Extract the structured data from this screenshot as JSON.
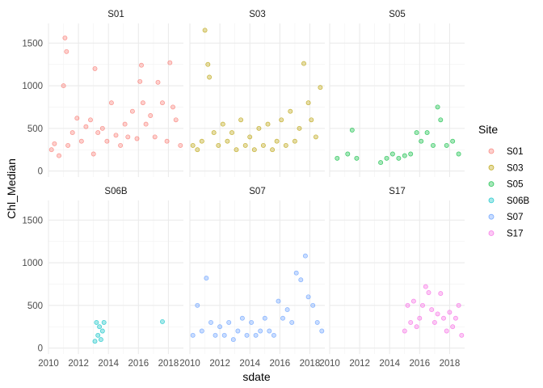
{
  "chart_data": {
    "type": "scatter",
    "facet_by": "Site",
    "xlabel": "sdate",
    "ylabel": "Chl_Median",
    "x_ticks": [
      "2010",
      "2012",
      "2014",
      "2016",
      "2018"
    ],
    "y_ticks": [
      "0",
      "500",
      "1000",
      "1500"
    ],
    "xlim": [
      2010,
      2019
    ],
    "ylim": [
      -70,
      1730
    ],
    "theme": "minimal",
    "grid": true,
    "point_alpha": 0.35,
    "legend": {
      "title": "Site",
      "position": "right",
      "entries": [
        {
          "label": "S01",
          "color": "#F8766D"
        },
        {
          "label": "S03",
          "color": "#B79F00"
        },
        {
          "label": "S05",
          "color": "#00BA38"
        },
        {
          "label": "S06B",
          "color": "#00BFC4"
        },
        {
          "label": "S07",
          "color": "#619CFF"
        },
        {
          "label": "S17",
          "color": "#F564E3"
        }
      ]
    },
    "facets": [
      {
        "label": "S01",
        "color": "#F8766D",
        "x": [
          2010.2,
          2010.4,
          2010.7,
          2011.0,
          2011.1,
          2011.2,
          2011.3,
          2011.6,
          2011.9,
          2012.2,
          2012.5,
          2012.8,
          2013.0,
          2013.1,
          2013.3,
          2013.6,
          2013.9,
          2014.2,
          2014.5,
          2014.8,
          2015.1,
          2015.3,
          2015.6,
          2015.9,
          2016.1,
          2016.2,
          2016.3,
          2016.5,
          2016.8,
          2017.1,
          2017.3,
          2017.6,
          2017.9,
          2018.1,
          2018.3,
          2018.5,
          2018.8
        ],
        "y": [
          250,
          320,
          180,
          1000,
          1560,
          1400,
          300,
          450,
          620,
          350,
          520,
          600,
          200,
          1200,
          450,
          500,
          350,
          800,
          420,
          300,
          550,
          400,
          700,
          380,
          1050,
          1240,
          800,
          550,
          650,
          400,
          1040,
          800,
          350,
          1270,
          750,
          600,
          300
        ]
      },
      {
        "label": "S03",
        "color": "#B79F00",
        "x": [
          2010.2,
          2010.5,
          2010.8,
          2011.0,
          2011.2,
          2011.3,
          2011.6,
          2011.9,
          2012.2,
          2012.5,
          2012.8,
          2013.1,
          2013.4,
          2013.7,
          2014.0,
          2014.3,
          2014.6,
          2014.9,
          2015.2,
          2015.5,
          2015.8,
          2016.1,
          2016.4,
          2016.7,
          2017.0,
          2017.3,
          2017.6,
          2017.9,
          2018.1,
          2018.4,
          2018.7
        ],
        "y": [
          300,
          250,
          350,
          1650,
          1250,
          1100,
          450,
          300,
          550,
          350,
          450,
          250,
          600,
          300,
          400,
          250,
          500,
          300,
          550,
          250,
          350,
          600,
          300,
          700,
          350,
          500,
          1260,
          800,
          600,
          400,
          980
        ]
      },
      {
        "label": "S05",
        "color": "#00BA38",
        "x": [
          2010.5,
          2011.2,
          2011.5,
          2011.8,
          2013.4,
          2013.8,
          2014.2,
          2014.6,
          2015.0,
          2015.4,
          2015.8,
          2016.1,
          2016.5,
          2016.9,
          2017.2,
          2017.4,
          2017.8,
          2018.2,
          2018.6
        ],
        "y": [
          150,
          200,
          480,
          150,
          100,
          150,
          200,
          150,
          180,
          200,
          450,
          350,
          450,
          300,
          750,
          600,
          300,
          350,
          200
        ]
      },
      {
        "label": "S06B",
        "color": "#00BFC4",
        "x": [
          2013.1,
          2013.2,
          2013.3,
          2013.4,
          2013.5,
          2013.6,
          2013.7,
          2017.6
        ],
        "y": [
          80,
          300,
          150,
          250,
          100,
          200,
          300,
          310
        ]
      },
      {
        "label": "S07",
        "color": "#619CFF",
        "x": [
          2010.2,
          2010.5,
          2010.8,
          2011.1,
          2011.4,
          2011.7,
          2012.0,
          2012.3,
          2012.6,
          2012.9,
          2013.2,
          2013.5,
          2013.8,
          2014.1,
          2014.4,
          2014.7,
          2015.0,
          2015.3,
          2015.6,
          2015.9,
          2016.2,
          2016.5,
          2016.8,
          2017.1,
          2017.4,
          2017.7,
          2017.9,
          2018.2,
          2018.5,
          2018.8
        ],
        "y": [
          150,
          500,
          200,
          820,
          300,
          150,
          250,
          150,
          300,
          100,
          200,
          350,
          150,
          300,
          150,
          200,
          350,
          200,
          150,
          550,
          350,
          450,
          300,
          880,
          800,
          1080,
          600,
          500,
          300,
          200
        ]
      },
      {
        "label": "S17",
        "color": "#F564E3",
        "x": [
          2015.0,
          2015.2,
          2015.4,
          2015.6,
          2015.8,
          2016.0,
          2016.2,
          2016.4,
          2016.6,
          2016.8,
          2017.0,
          2017.2,
          2017.4,
          2017.6,
          2017.8,
          2018.0,
          2018.2,
          2018.4,
          2018.6,
          2018.8
        ],
        "y": [
          200,
          500,
          300,
          550,
          250,
          350,
          500,
          720,
          650,
          450,
          300,
          400,
          640,
          350,
          200,
          420,
          250,
          350,
          500,
          150
        ]
      }
    ]
  }
}
